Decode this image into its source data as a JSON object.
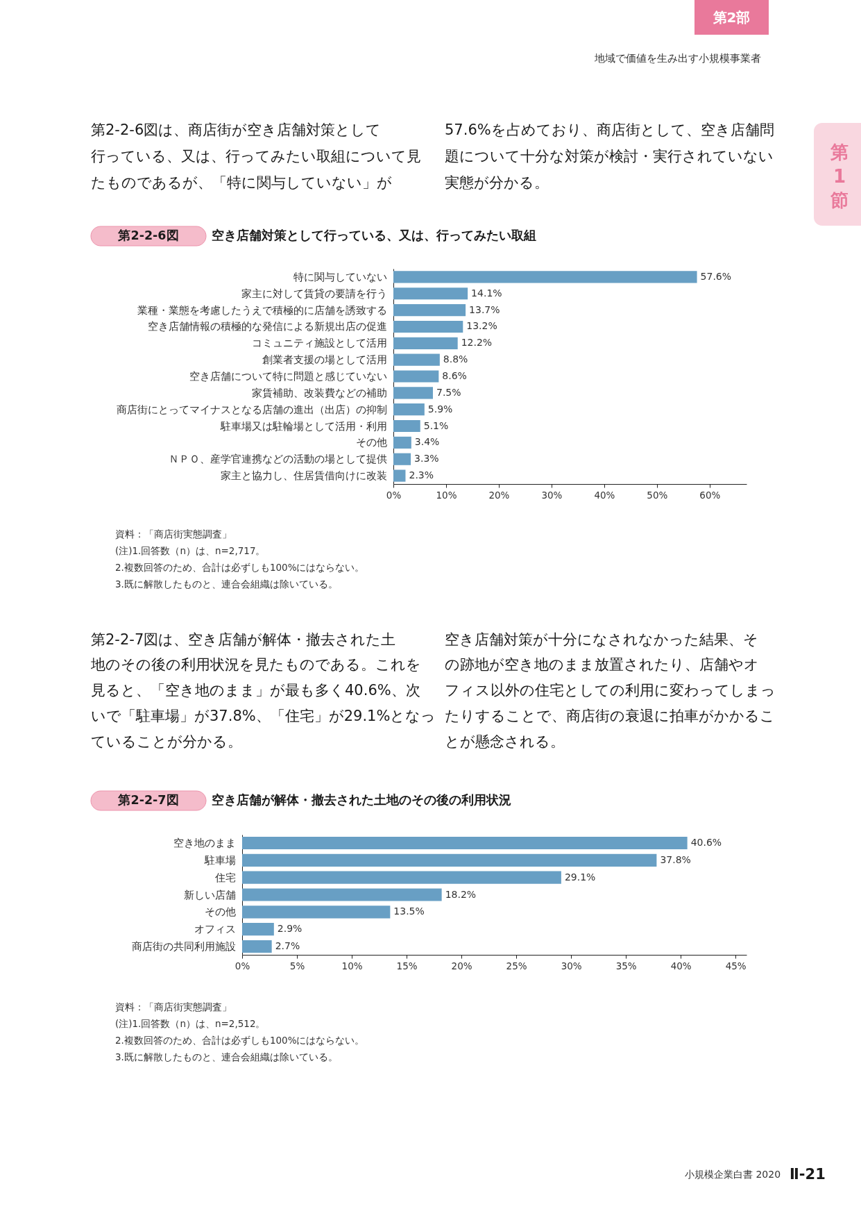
{
  "chart_data": [
    {
      "type": "other",
      "annotations": [
        "第2部",
        "地域で価値を生み出す小規模事業者",
        "第\n1\n節",
        "　第2-2-6図は、商店街が空き店舗対策として",
        "行っている、又は、行ってみたい取組について見",
        "たものであるが、「特に関与していない」が",
        "57.6%を占めており、商店街として、空き店舗問",
        "題について十分な対策が検討・実行されていない",
        "実態が分かる。"
      ]
    },
    {
      "type": "bar",
      "orientation": "horizontal",
      "title": "第2-2-6図　空き店舗対策として行っている、又は、行ってみたい取組",
      "categories": [
        "特に関与していない",
        "家主に対して賃貸の要請を行う",
        "業種・業態を考慮したうえで積極的に店舗を誘致する",
        "空き店舗情報の積極的な発信による新規出店の促進",
        "コミュニティ施設として活用",
        "創業者支援の場として活用",
        "空き店舗について特に問題と感じていない",
        "家賃補助、改装費などの補助",
        "商店街にとってマイナスとなる店舗の進出（出店）の抑制",
        "駐車場又は駐輪場として活用・利用",
        "その他",
        "ＮＰＯ、産学官連携などの活動の場として提供",
        "家主と協力し、住居賃借向けに改装"
      ],
      "values": [
        57.6,
        14.1,
        13.7,
        13.2,
        12.2,
        8.8,
        8.6,
        7.5,
        5.9,
        5.1,
        3.4,
        3.3,
        2.3
      ],
      "value_labels": [
        "57.6%",
        "14.1%",
        "13.7%",
        "13.2%",
        "12.2%",
        "8.8%",
        "8.6%",
        "7.5%",
        "5.9%",
        "5.1%",
        "3.4%",
        "3.3%",
        "2.3%"
      ],
      "color": "#689fc4",
      "xlim": [
        0,
        67
      ],
      "xticks": [
        {
          "value": 0,
          "label": "0%"
        },
        {
          "value": 10,
          "label": "10%"
        },
        {
          "value": 20,
          "label": "20%"
        },
        {
          "value": 30,
          "label": "30%"
        },
        {
          "value": 40,
          "label": "40%"
        },
        {
          "value": 50,
          "label": "50%"
        },
        {
          "value": 60,
          "label": "60%"
        }
      ],
      "annotations": [
        "資料：「商店街実態調査」",
        "(注)1.回答数（n）は、n=2,717。",
        "2.複数回答のため、合計は必ずしも100%にはならない。",
        "3.既に解散したものと、連合会組織は除いている。"
      ]
    },
    {
      "type": "other",
      "annotations": [
        "　第2-2-7図は、空き店舗が解体・撤去された土",
        "地のその後の利用状況を見たものである。これを",
        "見ると、「空き地のまま」が最も多く40.6%、次",
        "いで「駐車場」が37.8%、「住宅」が29.1%となっ",
        "ていることが分かる。",
        "　空き店舗対策が十分になされなかった結果、そ",
        "の跡地が空き地のまま放置されたり、店舗やオ",
        "フィス以外の住宅としての利用に変わってしまっ",
        "たりすることで、商店街の衰退に拍車がかかるこ",
        "とが懸念される。"
      ]
    },
    {
      "type": "bar",
      "orientation": "horizontal",
      "title": "第2-2-7図　空き店舗が解体・撤去された土地のその後の利用状況",
      "categories": [
        "空き地のまま",
        "駐車場",
        "住宅",
        "新しい店舗",
        "その他",
        "オフィス",
        "商店街の共同利用施設"
      ],
      "values": [
        40.6,
        37.8,
        29.1,
        18.2,
        13.5,
        2.9,
        2.7
      ],
      "value_labels": [
        "40.6%",
        "37.8%",
        "29.1%",
        "18.2%",
        "13.5%",
        "2.9%",
        "2.7%"
      ],
      "color": "#689fc4",
      "xlim": [
        0,
        46
      ],
      "xticks": [
        {
          "value": 0,
          "label": "0%"
        },
        {
          "value": 5,
          "label": "5%"
        },
        {
          "value": 10,
          "label": "10%"
        },
        {
          "value": 15,
          "label": "15%"
        },
        {
          "value": 20,
          "label": "20%"
        },
        {
          "value": 25,
          "label": "25%"
        },
        {
          "value": 30,
          "label": "30%"
        },
        {
          "value": 35,
          "label": "35%"
        },
        {
          "value": 40,
          "label": "40%"
        },
        {
          "value": 45,
          "label": "45%"
        }
      ],
      "annotations": [
        "資料：「商店街実態調査」",
        "(注)1.回答数（n）は、n=2,512。",
        "2.複数回答のため、合計は必ずしも100%にはならない。",
        "3.既に解散したものと、連合会組織は除いている。"
      ]
    },
    {
      "type": "other",
      "annotations": [
        "小規模企業白書 2020",
        "Ⅱ-21"
      ]
    }
  ]
}
